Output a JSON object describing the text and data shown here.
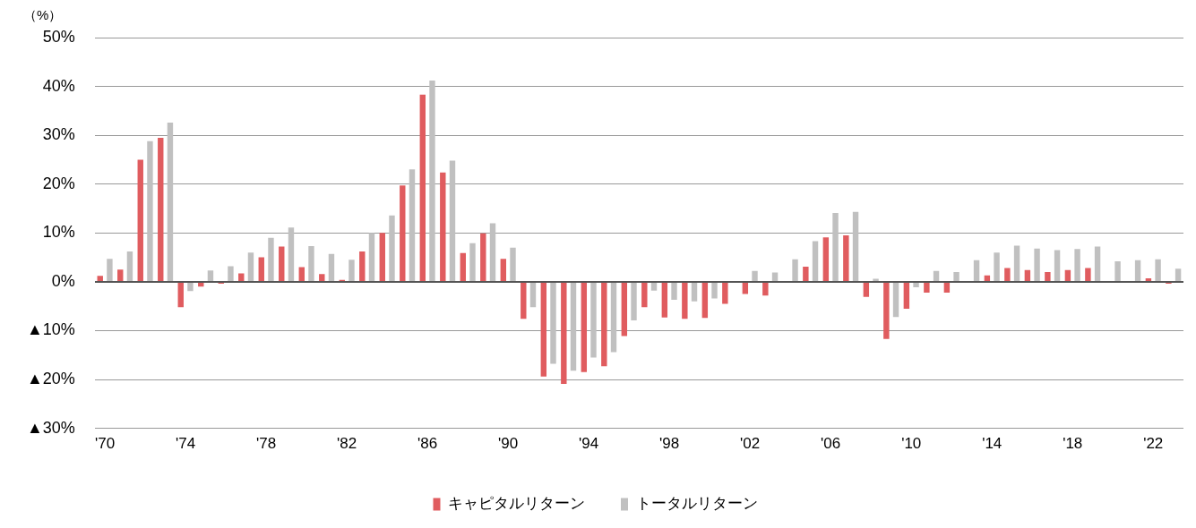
{
  "chart_data": {
    "type": "bar",
    "ylabel": "（%）",
    "categories": [
      "'70",
      null,
      null,
      null,
      "'74",
      null,
      null,
      null,
      "'78",
      null,
      null,
      null,
      "'82",
      null,
      null,
      null,
      "'86",
      null,
      null,
      null,
      "'90",
      null,
      null,
      null,
      "'94",
      null,
      null,
      null,
      "'98",
      null,
      null,
      null,
      "'02",
      null,
      null,
      null,
      "'06",
      null,
      null,
      null,
      "'10",
      null,
      null,
      null,
      "'14",
      null,
      null,
      null,
      "'18",
      null,
      null,
      null,
      "'22",
      null
    ],
    "series": [
      {
        "name": "キャピタルリターン",
        "color": "#e05c5f",
        "values": [
          1.2,
          2.5,
          25,
          29.5,
          -5.2,
          -1.0,
          -0.4,
          1.7,
          5.0,
          7.2,
          3.0,
          1.6,
          0.4,
          6.2,
          10.0,
          19.7,
          38.3,
          22.4,
          5.9,
          9.9,
          4.7,
          -7.6,
          -19.4,
          -20.9,
          -18.5,
          -17.3,
          -11.1,
          -5.2,
          -7.3,
          -7.6,
          -7.4,
          -4.5,
          -2.5,
          -2.8,
          0,
          3.1,
          9.1,
          9.5,
          -3.1,
          -11.7,
          -5.5,
          -2.2,
          -2.2,
          0,
          1.3,
          2.8,
          2.4,
          2.0,
          2.4,
          2.8,
          0,
          null,
          0.7,
          -0.4
        ]
      },
      {
        "name": "トータルリターン",
        "color": "#c0c0c0",
        "values": [
          4.7,
          6.2,
          28.8,
          32.6,
          -1.9,
          2.3,
          3.2,
          6.0,
          9.0,
          11.1,
          7.3,
          5.7,
          4.5,
          10.0,
          13.6,
          23.0,
          41.2,
          24.8,
          7.9,
          12.0,
          7.0,
          -5.2,
          -16.8,
          -18.2,
          -15.5,
          -14.4,
          -7.9,
          -1.8,
          -3.7,
          -4.0,
          -3.4,
          null,
          2.2,
          1.9,
          4.6,
          8.3,
          14.1,
          14.3,
          0.6,
          -7.2,
          -1.1,
          2.2,
          2.0,
          4.4,
          6.0,
          7.4,
          6.8,
          6.5,
          6.7,
          7.2,
          4.2,
          4.4,
          4.6,
          2.7
        ]
      }
    ],
    "ylim": [
      -30,
      50
    ],
    "yticks": [
      {
        "value": -30,
        "label": "▲30%"
      },
      {
        "value": -20,
        "label": "▲20%"
      },
      {
        "value": -10,
        "label": "▲10%"
      },
      {
        "value": 0,
        "label": "0%"
      },
      {
        "value": 10,
        "label": "10%"
      },
      {
        "value": 20,
        "label": "20%"
      },
      {
        "value": 30,
        "label": "30%"
      },
      {
        "value": 40,
        "label": "40%"
      },
      {
        "value": 50,
        "label": "50%"
      }
    ],
    "grid": "y",
    "legend": "bottom"
  }
}
